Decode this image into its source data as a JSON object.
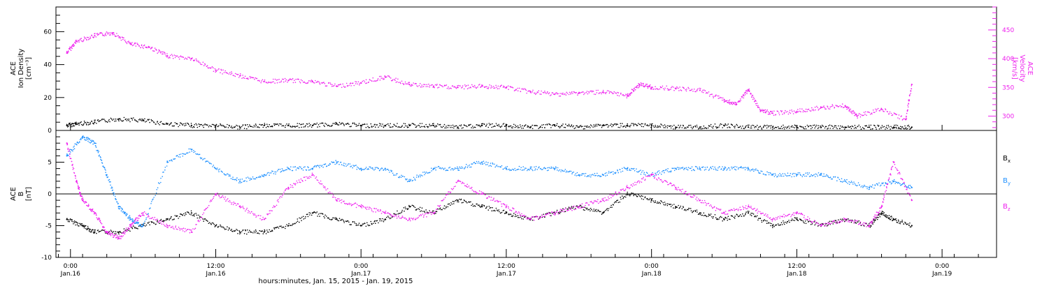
{
  "chart_data": [
    {
      "type": "scatter",
      "panel": "top",
      "ylabel_left": [
        "ACE",
        "Ion Density",
        "[cm⁻³]"
      ],
      "ylabel_right": [
        "ACE",
        "Velocity",
        "[km/s]"
      ],
      "ylim_left": [
        0,
        75
      ],
      "ylim_right": [
        275,
        490
      ],
      "yticks_left": [
        0,
        20,
        40,
        60
      ],
      "yticks_right": [
        300,
        350,
        400,
        450
      ],
      "series": [
        {
          "name": "Ion Density",
          "axis": "left",
          "color": "#000000",
          "points": [
            [
              -0.3,
              3
            ],
            [
              0.5,
              4
            ],
            [
              2,
              5
            ],
            [
              4,
              7
            ],
            [
              6,
              6
            ],
            [
              8,
              4
            ],
            [
              10,
              3
            ],
            [
              12,
              3
            ],
            [
              14,
              2
            ],
            [
              16,
              3
            ],
            [
              18,
              3
            ],
            [
              20,
              3
            ],
            [
              22,
              4
            ],
            [
              24,
              3
            ],
            [
              26,
              3
            ],
            [
              28,
              3
            ],
            [
              30,
              3
            ],
            [
              32,
              2
            ],
            [
              34,
              3
            ],
            [
              36,
              3
            ],
            [
              38,
              2
            ],
            [
              40,
              3
            ],
            [
              42,
              2
            ],
            [
              44,
              3
            ],
            [
              46,
              3
            ],
            [
              48,
              3
            ],
            [
              50,
              2
            ],
            [
              52,
              2
            ],
            [
              54,
              3
            ],
            [
              56,
              2
            ],
            [
              58,
              2
            ],
            [
              60,
              2
            ],
            [
              62,
              2
            ],
            [
              64,
              2
            ],
            [
              66,
              2
            ],
            [
              68,
              2
            ],
            [
              69.5,
              2
            ]
          ]
        },
        {
          "name": "Velocity",
          "axis": "right",
          "color": "#ee22ee",
          "points": [
            [
              -0.3,
              410
            ],
            [
              0.5,
              430
            ],
            [
              2,
              440
            ],
            [
              3.5,
              445
            ],
            [
              5,
              425
            ],
            [
              6.5,
              420
            ],
            [
              8,
              405
            ],
            [
              10,
              400
            ],
            [
              12,
              380
            ],
            [
              14,
              370
            ],
            [
              16,
              360
            ],
            [
              18,
              362
            ],
            [
              20,
              360
            ],
            [
              22,
              352
            ],
            [
              24,
              358
            ],
            [
              26,
              368
            ],
            [
              28,
              355
            ],
            [
              30,
              352
            ],
            [
              32,
              350
            ],
            [
              34,
              352
            ],
            [
              36,
              350
            ],
            [
              38,
              342
            ],
            [
              40,
              338
            ],
            [
              42,
              340
            ],
            [
              44,
              342
            ],
            [
              46,
              335
            ],
            [
              47,
              355
            ],
            [
              48,
              350
            ],
            [
              50,
              348
            ],
            [
              52,
              345
            ],
            [
              54,
              328
            ],
            [
              55,
              320
            ],
            [
              56,
              345
            ],
            [
              57,
              310
            ],
            [
              58,
              305
            ],
            [
              60,
              308
            ],
            [
              62,
              315
            ],
            [
              64,
              318
            ],
            [
              65,
              300
            ],
            [
              67,
              312
            ],
            [
              69,
              294
            ],
            [
              69.5,
              355
            ]
          ]
        }
      ]
    },
    {
      "type": "scatter",
      "panel": "bottom",
      "ylabel_left": [
        "ACE",
        "B",
        "[nT]"
      ],
      "ylim": [
        -10,
        10
      ],
      "yticks": [
        -10,
        -5,
        0,
        5
      ],
      "zero_line": true,
      "legend_placement": "right",
      "series": [
        {
          "name": "Bx",
          "label_main": "B",
          "label_sub": "x",
          "color": "#000000",
          "points": [
            [
              -0.3,
              -4
            ],
            [
              1,
              -5
            ],
            [
              2,
              -6
            ],
            [
              4,
              -6
            ],
            [
              6,
              -5
            ],
            [
              8,
              -4
            ],
            [
              10,
              -3
            ],
            [
              12,
              -5
            ],
            [
              14,
              -6
            ],
            [
              16,
              -6
            ],
            [
              18,
              -5
            ],
            [
              20,
              -3
            ],
            [
              22,
              -4
            ],
            [
              24,
              -5
            ],
            [
              26,
              -4
            ],
            [
              28,
              -2
            ],
            [
              30,
              -3
            ],
            [
              32,
              -1
            ],
            [
              34,
              -2
            ],
            [
              36,
              -3
            ],
            [
              38,
              -4
            ],
            [
              40,
              -3
            ],
            [
              42,
              -2
            ],
            [
              44,
              -3
            ],
            [
              46,
              0
            ],
            [
              48,
              -1
            ],
            [
              50,
              -2
            ],
            [
              52,
              -3
            ],
            [
              54,
              -4
            ],
            [
              56,
              -3
            ],
            [
              58,
              -5
            ],
            [
              60,
              -4
            ],
            [
              62,
              -5
            ],
            [
              64,
              -4
            ],
            [
              66,
              -5
            ],
            [
              67,
              -3
            ],
            [
              68,
              -4
            ],
            [
              69.5,
              -5
            ]
          ]
        },
        {
          "name": "By",
          "label_main": "B",
          "label_sub": "y",
          "color": "#1e90ff",
          "points": [
            [
              -0.3,
              6
            ],
            [
              1,
              9
            ],
            [
              2,
              8
            ],
            [
              3,
              3
            ],
            [
              4,
              -2
            ],
            [
              5,
              -4
            ],
            [
              6,
              -5
            ],
            [
              8,
              5
            ],
            [
              10,
              7
            ],
            [
              12,
              4
            ],
            [
              14,
              2
            ],
            [
              16,
              3
            ],
            [
              18,
              4
            ],
            [
              20,
              4
            ],
            [
              22,
              5
            ],
            [
              24,
              4
            ],
            [
              26,
              4
            ],
            [
              28,
              2
            ],
            [
              30,
              4
            ],
            [
              32,
              4
            ],
            [
              34,
              5
            ],
            [
              36,
              4
            ],
            [
              38,
              4
            ],
            [
              40,
              4
            ],
            [
              42,
              3
            ],
            [
              44,
              3
            ],
            [
              46,
              4
            ],
            [
              48,
              3
            ],
            [
              50,
              4
            ],
            [
              52,
              4
            ],
            [
              54,
              4
            ],
            [
              56,
              4
            ],
            [
              58,
              3
            ],
            [
              60,
              3
            ],
            [
              62,
              3
            ],
            [
              64,
              2
            ],
            [
              66,
              1
            ],
            [
              68,
              2
            ],
            [
              69.5,
              1
            ]
          ]
        },
        {
          "name": "Bz",
          "label_main": "B",
          "label_sub": "z",
          "color": "#ee22ee",
          "points": [
            [
              -0.3,
              8
            ],
            [
              0.5,
              2
            ],
            [
              1,
              -1
            ],
            [
              2,
              -3
            ],
            [
              3,
              -6
            ],
            [
              4,
              -7
            ],
            [
              5,
              -5
            ],
            [
              6,
              -3
            ],
            [
              8,
              -5
            ],
            [
              10,
              -6
            ],
            [
              12,
              0
            ],
            [
              14,
              -2
            ],
            [
              16,
              -4
            ],
            [
              18,
              1
            ],
            [
              20,
              3
            ],
            [
              22,
              -1
            ],
            [
              24,
              -2
            ],
            [
              26,
              -3
            ],
            [
              28,
              -4
            ],
            [
              30,
              -3
            ],
            [
              32,
              2
            ],
            [
              34,
              0
            ],
            [
              36,
              -2
            ],
            [
              38,
              -4
            ],
            [
              40,
              -3
            ],
            [
              42,
              -2
            ],
            [
              44,
              -1
            ],
            [
              46,
              1
            ],
            [
              48,
              3
            ],
            [
              50,
              1
            ],
            [
              52,
              -1
            ],
            [
              54,
              -3
            ],
            [
              56,
              -2
            ],
            [
              58,
              -4
            ],
            [
              60,
              -3
            ],
            [
              62,
              -5
            ],
            [
              64,
              -4
            ],
            [
              66,
              -5
            ],
            [
              67,
              -2
            ],
            [
              68,
              5
            ],
            [
              69.5,
              -1
            ]
          ]
        }
      ]
    },
    {
      "type": "x-axis",
      "xlim": [
        -1.2,
        76.5
      ],
      "ticks": [
        {
          "x": 0,
          "time": "0:00",
          "date": "Jan.16"
        },
        {
          "x": 12,
          "time": "12:00",
          "date": "Jan.16"
        },
        {
          "x": 24,
          "time": "0:00",
          "date": "Jan.17"
        },
        {
          "x": 36,
          "time": "12:00",
          "date": "Jan.17"
        },
        {
          "x": 48,
          "time": "0:00",
          "date": "Jan.18"
        },
        {
          "x": 60,
          "time": "12:00",
          "date": "Jan.18"
        },
        {
          "x": 72,
          "time": "0:00",
          "date": "Jan.19"
        }
      ],
      "xlabel": "hours:minutes, Jan. 15, 2015 - Jan. 19, 2015"
    }
  ]
}
